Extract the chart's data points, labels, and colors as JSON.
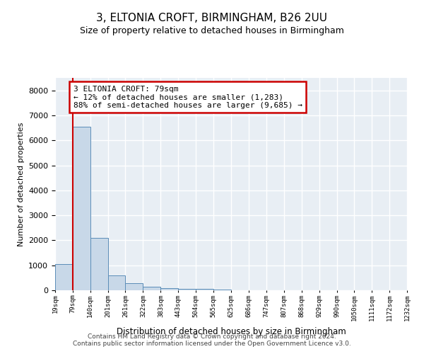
{
  "title": "3, ELTONIA CROFT, BIRMINGHAM, B26 2UU",
  "subtitle": "Size of property relative to detached houses in Birmingham",
  "xlabel": "Distribution of detached houses by size in Birmingham",
  "ylabel": "Number of detached properties",
  "footer_line1": "Contains HM Land Registry data © Crown copyright and database right 2024.",
  "footer_line2": "Contains public sector information licensed under the Open Government Licence v3.0.",
  "annotation_title": "3 ELTONIA CROFT: 79sqm",
  "annotation_line1": "← 12% of detached houses are smaller (1,283)",
  "annotation_line2": "88% of semi-detached houses are larger (9,685) →",
  "property_size_sqm": 79,
  "bin_edges": [
    19,
    79,
    140,
    201,
    261,
    322,
    383,
    443,
    504,
    565,
    625,
    686,
    747,
    807,
    868,
    929,
    990,
    1050,
    1111,
    1172,
    1232
  ],
  "bar_heights": [
    1050,
    6550,
    2100,
    590,
    280,
    140,
    80,
    50,
    45,
    35,
    0,
    0,
    0,
    0,
    0,
    0,
    0,
    0,
    0,
    0
  ],
  "bar_color": "#c8d8e8",
  "bar_edge_color": "#5b8db8",
  "vline_color": "#cc0000",
  "background_color": "#ffffff",
  "plot_background_color": "#e8eef4",
  "grid_color": "#ffffff",
  "annotation_box_color": "#ffffff",
  "annotation_box_edge": "#cc0000",
  "ylim": [
    0,
    8500
  ],
  "yticks": [
    0,
    1000,
    2000,
    3000,
    4000,
    5000,
    6000,
    7000,
    8000
  ]
}
